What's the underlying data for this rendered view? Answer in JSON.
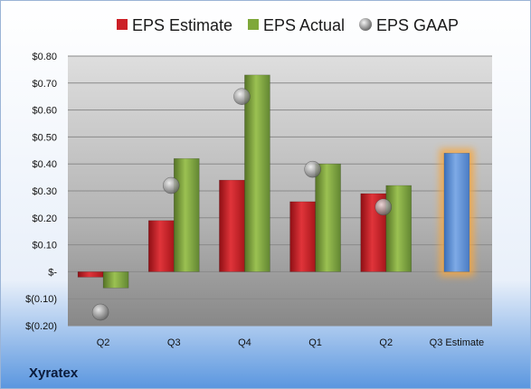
{
  "chart_data": {
    "type": "bar",
    "categories": [
      "Q2",
      "Q3",
      "Q4",
      "Q1",
      "Q2",
      "Q3 Estimate"
    ],
    "series": [
      {
        "name": "EPS Estimate",
        "values": [
          -0.02,
          0.19,
          0.34,
          0.26,
          0.29,
          null
        ]
      },
      {
        "name": "EPS Actual",
        "values": [
          -0.06,
          0.42,
          0.73,
          0.4,
          0.32,
          null
        ]
      },
      {
        "name": "EPS GAAP",
        "values": [
          -0.15,
          0.32,
          0.65,
          0.38,
          0.24,
          null
        ]
      }
    ],
    "next_quarter_estimate": 0.44,
    "ylim": [
      -0.2,
      0.8
    ],
    "yticks": [
      -0.2,
      -0.1,
      0,
      0.1,
      0.2,
      0.3,
      0.4,
      0.5,
      0.6,
      0.7,
      0.8
    ],
    "ytick_labels": [
      "$(0.20)",
      "$(0.10)",
      "$-",
      "$0.10",
      "$0.20",
      "$0.30",
      "$0.40",
      "$0.50",
      "$0.60",
      "$0.70",
      "$0.80"
    ],
    "grid": true,
    "legend_position": "top"
  },
  "legend": {
    "estimate": "EPS Estimate",
    "actual": "EPS Actual",
    "gaap": "EPS GAAP"
  },
  "footer": {
    "company": "Xyratex"
  },
  "colors": {
    "estimate": "#cc1f26",
    "actual": "#7fa83a",
    "gaap": "#9a9a9a",
    "next_estimate": "#5b8fd6",
    "highlight": "#f5a742",
    "plot_bg_top": "#dcdcdc",
    "plot_bg_bottom": "#8a8a8a",
    "page_bg_top": "#ffffff",
    "page_bg_bottom": "#5a96df"
  }
}
